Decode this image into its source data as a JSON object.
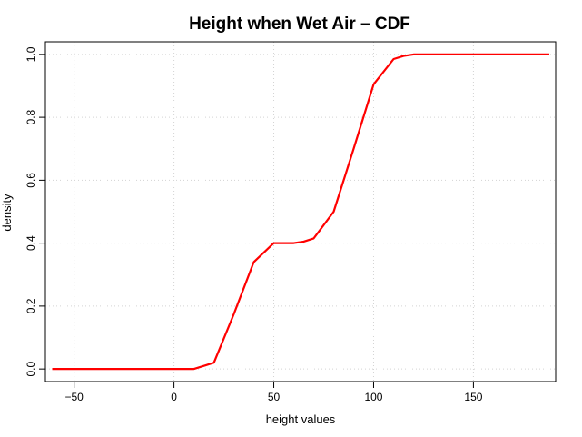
{
  "chart_data": {
    "type": "line",
    "title": "Height when Wet Air – CDF",
    "xlabel": "height values",
    "ylabel": "density",
    "xlim": [
      -64.4,
      191.2
    ],
    "ylim": [
      -0.04,
      1.04
    ],
    "xticks": [
      -50,
      0,
      50,
      100,
      150
    ],
    "xtick_labels": [
      "−50",
      "0",
      "50",
      "100",
      "150"
    ],
    "yticks": [
      0.0,
      0.2,
      0.4,
      0.6,
      0.8,
      1.0
    ],
    "ytick_labels": [
      "0.0",
      "0.2",
      "0.4",
      "0.6",
      "0.8",
      "1.0"
    ],
    "grid": true,
    "series": [
      {
        "color": "#ff0000",
        "x": [
          -61,
          -50,
          -40,
          -30,
          -20,
          -10,
          0,
          10,
          15,
          20,
          30,
          40,
          50,
          60,
          65,
          70,
          80,
          90,
          100,
          110,
          115,
          120,
          130,
          140,
          150,
          160,
          170,
          180,
          188
        ],
        "y": [
          0.0,
          0.0,
          0.0,
          0.0,
          0.0,
          0.0,
          0.0,
          0.0,
          0.01,
          0.02,
          0.175,
          0.34,
          0.4,
          0.4,
          0.405,
          0.415,
          0.5,
          0.7,
          0.905,
          0.985,
          0.995,
          1.0,
          1.0,
          1.0,
          1.0,
          1.0,
          1.0,
          1.0,
          1.0
        ]
      }
    ]
  }
}
